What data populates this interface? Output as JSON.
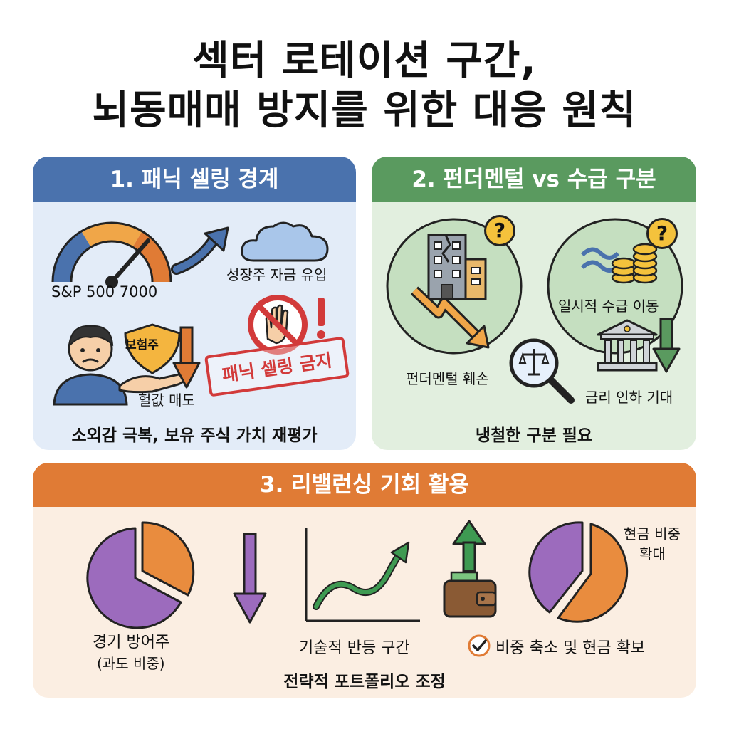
{
  "title": {
    "line1": "섹터 로테이션 구간,",
    "line2": "뇌동매매 방지를 위한 대응 원칙"
  },
  "panel1": {
    "heading": "1. 패닉 셀링 경계",
    "index_label": "S&P 500 7000",
    "inflow_label": "성장주 자금 유입",
    "shield_label": "보험주",
    "dump_label": "헐값 매도",
    "stamp_label": "패닉 셀링 금지",
    "footer": "소외감 극복, 보유 주식 가치 재평가",
    "colors": {
      "header": "#4a72ad",
      "body": "#e3ecf8"
    }
  },
  "panel2": {
    "heading": "2. 펀더멘털 vs 수급 구분",
    "damage_label": "펀더멘털 훼손",
    "flow_label": "일시적 수급 이동",
    "rate_label": "금리 인하 기대",
    "question_mark": "?",
    "footer": "냉철한 구분 필요",
    "colors": {
      "header": "#5a9a5f",
      "body": "#e2efdf"
    }
  },
  "panel3": {
    "heading": "3. 리밸런싱 기회 활용",
    "defensive_label_1": "경기 방어주",
    "defensive_label_2": "(과도 비중)",
    "rebound_label": "기술적 반등 구간",
    "cash_label_1": "현금 비중",
    "cash_label_2": "확대",
    "reduce_label": "비중 축소 및 현금 확보",
    "footer": "전략적 포트폴리오 조정",
    "colors": {
      "header": "#e07b35",
      "body": "#fbeee2"
    }
  }
}
